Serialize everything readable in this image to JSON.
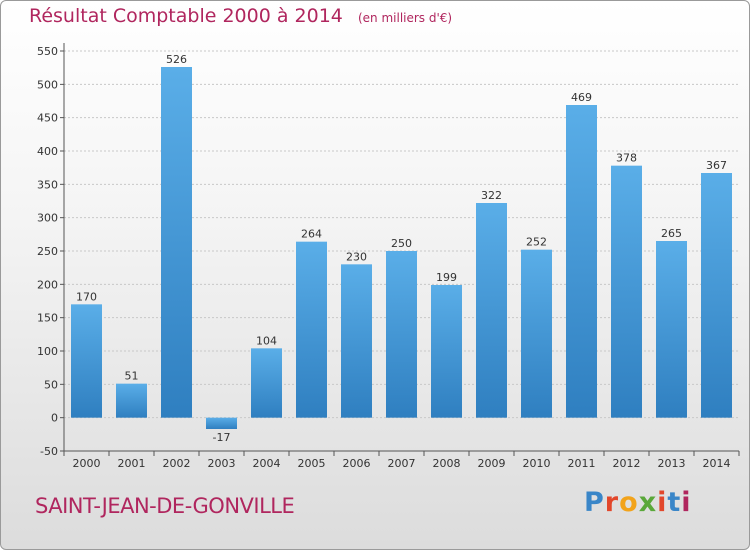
{
  "header": {
    "title": "Résultat Comptable 2000 à 2014",
    "unit": "(en milliers d'€)"
  },
  "footer": {
    "commune": "SAINT-JEAN-DE-GONVILLE",
    "brand": "Proxiti",
    "brand_colors": [
      "#3a86c8",
      "#e2472b",
      "#f2a31b",
      "#5aa83a",
      "#e2472b",
      "#3a86c8",
      "#b0265e"
    ]
  },
  "colors": {
    "title": "#b0265e",
    "bar_light": "#5aaee8",
    "bar_dark": "#2f7fc0",
    "grid": "#c8c8c8"
  },
  "chart_data": {
    "type": "bar",
    "title": "Résultat Comptable 2000 à 2014",
    "categories": [
      "2000",
      "2001",
      "2002",
      "2003",
      "2004",
      "2005",
      "2006",
      "2007",
      "2008",
      "2009",
      "2010",
      "2011",
      "2012",
      "2013",
      "2014"
    ],
    "values": [
      170,
      51,
      526,
      -17,
      104,
      264,
      230,
      250,
      199,
      322,
      252,
      469,
      378,
      265,
      367
    ],
    "yticks": [
      -50,
      0,
      50,
      100,
      150,
      200,
      250,
      300,
      350,
      400,
      450,
      500,
      550
    ],
    "ylim": [
      -50,
      550
    ],
    "grid": true,
    "xlabel": "",
    "ylabel": ""
  }
}
